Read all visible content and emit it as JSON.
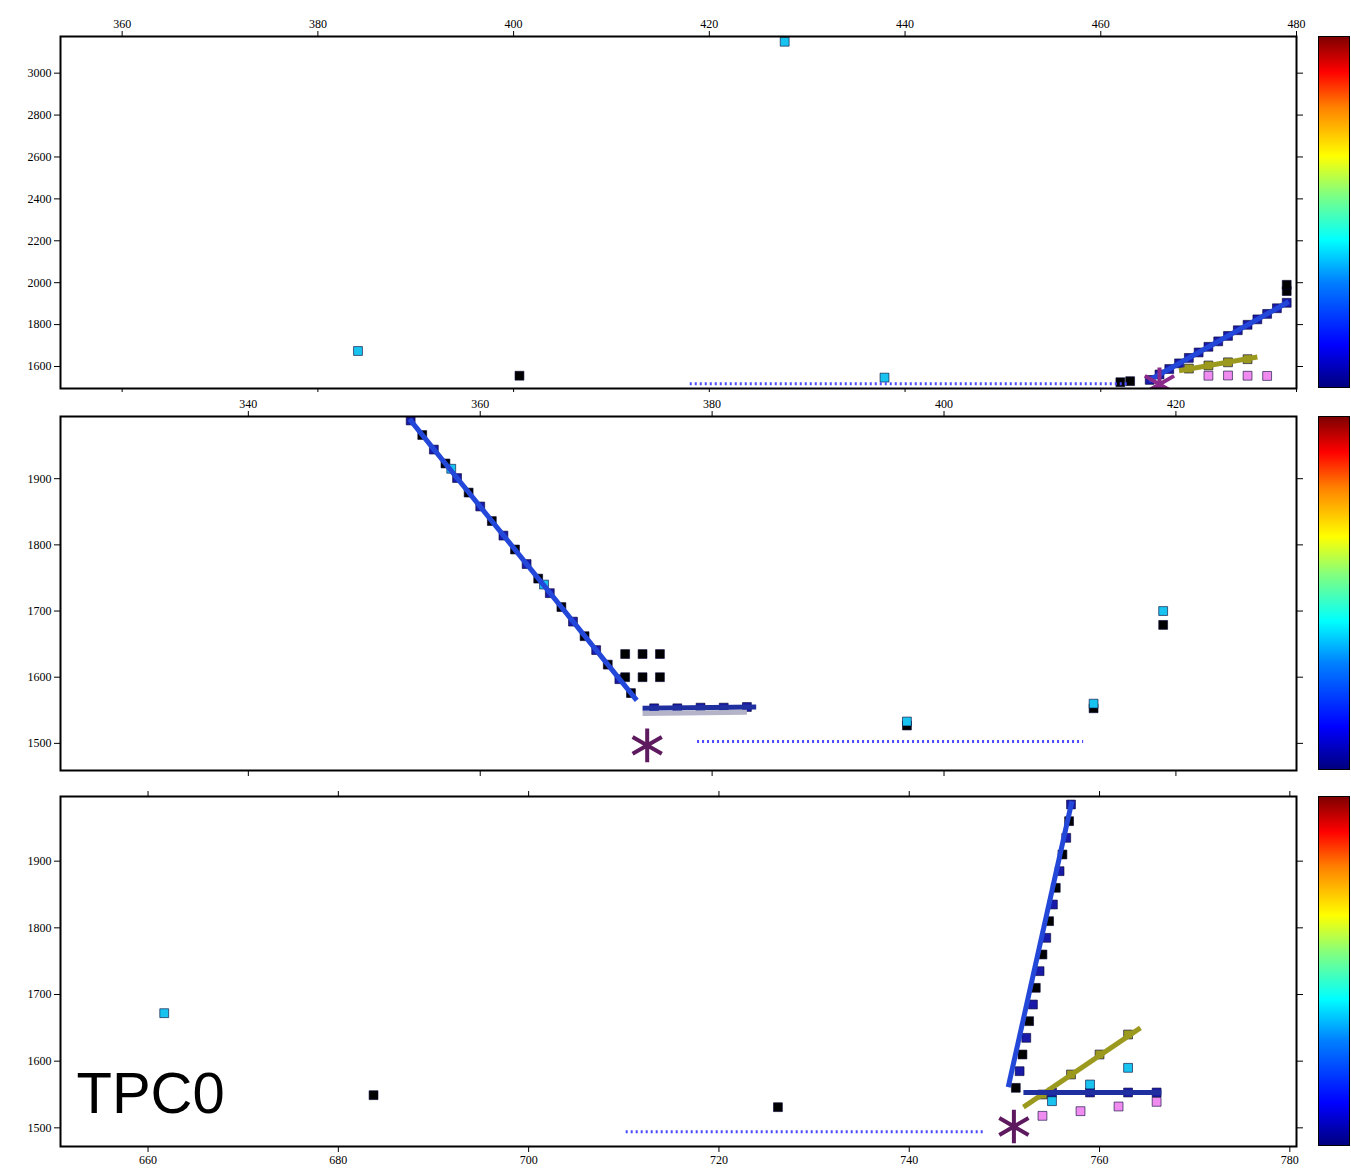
{
  "chart_data": [
    {
      "type": "scatter",
      "xlim": [
        353.7,
        480
      ],
      "ylim": [
        1495,
        3175
      ],
      "xticks": [
        360,
        380,
        400,
        420,
        440,
        460,
        480
      ],
      "yticks": [
        1600,
        1800,
        2000,
        2200,
        2400,
        2600,
        2800,
        3000
      ],
      "series": [
        {
          "type": "scatter",
          "marker": "square",
          "color": "#1a1aa8",
          "x": [
            465,
            466,
            467,
            468,
            469,
            470,
            471,
            472,
            473,
            474,
            475,
            476,
            477,
            478,
            479
          ],
          "y": [
            1536,
            1562,
            1588,
            1615,
            1641,
            1667,
            1694,
            1720,
            1746,
            1773,
            1799,
            1825,
            1851,
            1878,
            1904
          ]
        },
        {
          "type": "scatter",
          "marker": "square",
          "color": "#000000",
          "x": [
            462,
            463,
            479,
            479,
            400.6
          ],
          "y": [
            1525,
            1530,
            1960,
            1990,
            1556
          ]
        },
        {
          "type": "scatter",
          "marker": "square",
          "color": "#19c3f0",
          "x": [
            384.1,
            437.9,
            427.7
          ],
          "y": [
            1674,
            1547,
            3150
          ]
        },
        {
          "type": "scatter",
          "marker": "square",
          "color": "#9c9a1e",
          "x": [
            469,
            471,
            473,
            475
          ],
          "y": [
            1590,
            1605,
            1620,
            1635
          ]
        },
        {
          "type": "scatter",
          "marker": "square",
          "color": "#f08cf0",
          "x": [
            471,
            473,
            475,
            477
          ],
          "y": [
            1556,
            1557,
            1556,
            1555
          ]
        },
        {
          "type": "line",
          "color": "#2347d9",
          "x": [
            464.9,
            479.2
          ],
          "y": [
            1533,
            1909
          ]
        },
        {
          "type": "line",
          "color": "#9c9a1e",
          "x": [
            468,
            476
          ],
          "y": [
            1580,
            1645
          ]
        },
        {
          "type": "line",
          "line_style": "dotted",
          "color": "#4a4aff",
          "x": [
            418,
            462.9
          ],
          "y": [
            1518,
            1518
          ]
        },
        {
          "type": "scatter",
          "marker": "asterisk",
          "color": "#8a2a8a",
          "x": [
            466
          ],
          "y": [
            1515
          ]
        }
      ]
    },
    {
      "type": "scatter",
      "xlim": [
        323.8,
        430.4
      ],
      "ylim": [
        1459,
        1994
      ],
      "xticks": [
        340,
        360,
        380,
        400,
        420
      ],
      "yticks": [
        1500,
        1600,
        1700,
        1800,
        1900
      ],
      "series": [
        {
          "type": "scatter",
          "marker": "square",
          "color": "#1a1aa8",
          "x": [
            354,
            356,
            358,
            360,
            362,
            364,
            366,
            368,
            370,
            372,
            375,
            377,
            379,
            381,
            383
          ],
          "y": [
            1988,
            1944,
            1901,
            1858,
            1814,
            1771,
            1727,
            1684,
            1641,
            1597,
            1553,
            1553,
            1554,
            1554,
            1555
          ]
        },
        {
          "type": "scatter",
          "marker": "square",
          "color": "#000000",
          "x": [
            355,
            357,
            359,
            361,
            363,
            365,
            367,
            369,
            371,
            373,
            372.5,
            374,
            375.5,
            372.5,
            374,
            375.5,
            396.8,
            412.9,
            418.9
          ],
          "y": [
            1966,
            1923,
            1879,
            1836,
            1793,
            1749,
            1706,
            1662,
            1619,
            1576,
            1600,
            1600,
            1600,
            1635,
            1635,
            1635,
            1527,
            1553,
            1679
          ]
        },
        {
          "type": "scatter",
          "marker": "square",
          "color": "#19c3f0",
          "x": [
            396.8,
            412.9,
            418.9,
            357.5,
            365.5
          ],
          "y": [
            1533,
            1560,
            1700,
            1915,
            1740
          ]
        },
        {
          "type": "line",
          "color": "#2347d9",
          "x": [
            353.9,
            373.5
          ],
          "y": [
            1990,
            1565
          ]
        },
        {
          "type": "line",
          "color": "#1f2f9f",
          "x": [
            374,
            383.8
          ],
          "y": [
            1553,
            1555
          ]
        },
        {
          "type": "line",
          "color": "#b4b4c8",
          "x": [
            374,
            383
          ],
          "y": [
            1545,
            1547
          ]
        },
        {
          "type": "line",
          "line_style": "dotted",
          "color": "#4a4aff",
          "x": [
            378.7,
            412
          ],
          "y": [
            1503,
            1503
          ]
        },
        {
          "type": "scatter",
          "marker": "asterisk",
          "color": "#5e1a5e",
          "x": [
            374.4
          ],
          "y": [
            1497
          ]
        }
      ]
    },
    {
      "type": "scatter",
      "xlim": [
        650.8,
        780.7
      ],
      "ylim": [
        1472,
        1997
      ],
      "xticks": [
        660,
        680,
        700,
        720,
        740,
        760,
        780
      ],
      "yticks": [
        1500,
        1600,
        1700,
        1800,
        1900
      ],
      "annotations": [
        {
          "text": "TPC0"
        }
      ],
      "series": [
        {
          "type": "scatter",
          "marker": "square",
          "color": "#1a1aa8",
          "x": [
            757,
            756.5,
            755.8,
            755.1,
            754.4,
            753.7,
            753,
            752.3,
            751.6,
            755,
            759,
            763,
            766
          ],
          "y": [
            1985,
            1935,
            1885,
            1835,
            1785,
            1735,
            1685,
            1635,
            1585,
            1553,
            1553,
            1553,
            1553
          ]
        },
        {
          "type": "scatter",
          "marker": "square",
          "color": "#000000",
          "x": [
            756.8,
            756.1,
            755.4,
            754.7,
            754,
            753.3,
            752.6,
            751.9,
            751.2,
            683.7,
            726.2
          ],
          "y": [
            1960,
            1910,
            1860,
            1810,
            1760,
            1710,
            1660,
            1610,
            1560,
            1549,
            1531
          ]
        },
        {
          "type": "scatter",
          "marker": "square",
          "color": "#19c3f0",
          "x": [
            755,
            759,
            763,
            661.7
          ],
          "y": [
            1540,
            1565,
            1590,
            1672
          ]
        },
        {
          "type": "scatter",
          "marker": "square",
          "color": "#9c9a1e",
          "x": [
            754,
            757,
            760,
            763
          ],
          "y": [
            1550,
            1580,
            1610,
            1640
          ]
        },
        {
          "type": "scatter",
          "marker": "square",
          "color": "#f08cf0",
          "x": [
            754,
            758,
            762,
            766
          ],
          "y": [
            1518,
            1525,
            1532,
            1539
          ]
        },
        {
          "type": "line",
          "color": "#2347d9",
          "x": [
            757.1,
            750.4
          ],
          "y": [
            1990,
            1561
          ]
        },
        {
          "type": "line",
          "color": "#9c9a1e",
          "x": [
            752,
            764.3
          ],
          "y": [
            1531,
            1650
          ]
        },
        {
          "type": "line",
          "color": "#1f2f9f",
          "x": [
            752,
            766.5
          ],
          "y": [
            1553,
            1553
          ]
        },
        {
          "type": "line",
          "line_style": "dotted",
          "color": "#4a4aff",
          "x": [
            710.2,
            748
          ],
          "y": [
            1494,
            1494
          ]
        },
        {
          "type": "scatter",
          "marker": "asterisk",
          "color": "#5e1a5e",
          "x": [
            751
          ],
          "y": [
            1502
          ]
        }
      ]
    }
  ]
}
